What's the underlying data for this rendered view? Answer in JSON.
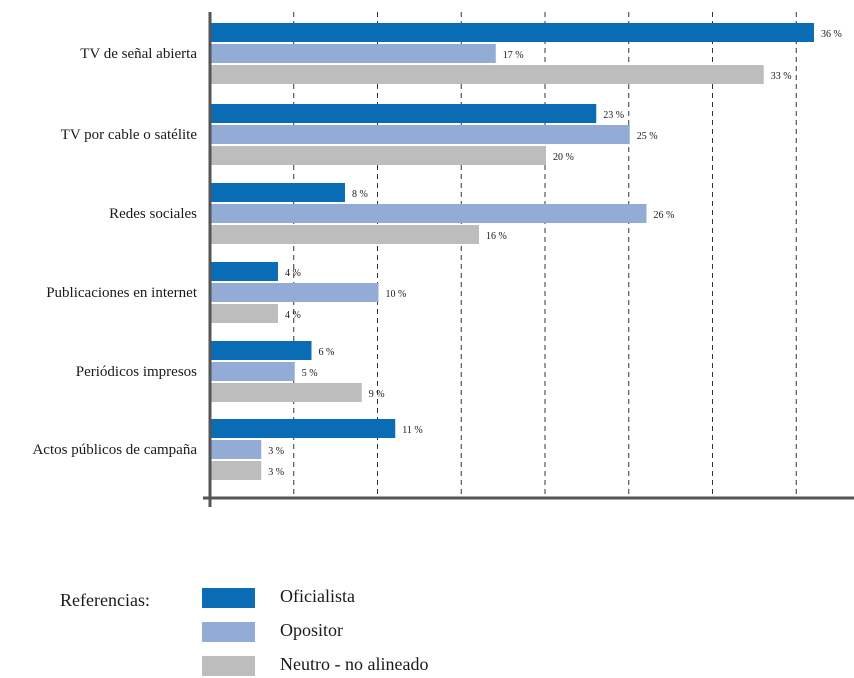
{
  "chart_data": {
    "type": "bar",
    "orientation": "horizontal",
    "categories": [
      "TV de señal abierta",
      "TV por cable o satélite",
      "Redes sociales",
      "Publicaciones en internet",
      "Periódicos impresos",
      "Actos públicos de campaña"
    ],
    "series": [
      {
        "name": "Oficialista",
        "color": "#0a6cb5",
        "values": [
          36,
          23,
          8,
          4,
          6,
          11
        ]
      },
      {
        "name": "Opositor",
        "color": "#93acd6",
        "values": [
          17,
          25,
          26,
          10,
          5,
          3
        ]
      },
      {
        "name": "Neutro - no alineado",
        "color": "#bdbdbd",
        "values": [
          33,
          20,
          16,
          4,
          9,
          3
        ]
      }
    ],
    "value_suffix": " %",
    "xlim": [
      0,
      37
    ],
    "grid": true,
    "grid_style": "dashed vertical",
    "legend_placement": "bottom-left"
  },
  "legend": {
    "title": "Referencias:",
    "items": [
      {
        "label": "Oficialista",
        "color": "#0a6cb5"
      },
      {
        "label": "Opositor",
        "color": "#93acd6"
      },
      {
        "label": "Neutro - no alineado",
        "color": "#bdbdbd"
      }
    ]
  }
}
